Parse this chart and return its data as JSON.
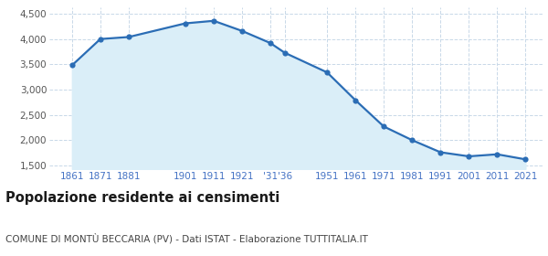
{
  "years": [
    1861,
    1871,
    1881,
    1901,
    1911,
    1921,
    1931,
    1936,
    1951,
    1961,
    1971,
    1981,
    1991,
    2001,
    2011,
    2021
  ],
  "population": [
    3480,
    4000,
    4040,
    4310,
    4360,
    4160,
    3920,
    3730,
    3340,
    2790,
    2270,
    2000,
    1760,
    1680,
    1720,
    1620
  ],
  "y_ticks": [
    1500,
    2000,
    2500,
    3000,
    3500,
    4000,
    4500
  ],
  "ylim": [
    1430,
    4620
  ],
  "xlim": [
    1853,
    2027
  ],
  "line_color": "#2b6db5",
  "fill_color": "#daeef8",
  "marker_color": "#2b6db5",
  "bg_color": "#ffffff",
  "plot_bg_color": "#ffffff",
  "grid_color": "#c8d8e8",
  "title": "Popolazione residente ai censimenti",
  "subtitle": "COMUNE DI MONTÙ BECCARIA (PV) - Dati ISTAT - Elaborazione TUTTITALIA.IT",
  "title_fontsize": 10.5,
  "subtitle_fontsize": 7.5,
  "tick_fontsize": 7.5,
  "tick_color": "#4472c4",
  "ytick_color": "#555555",
  "x_positions": [
    1861,
    1871,
    1881,
    1901,
    1911,
    1921,
    1931,
    1936,
    1951,
    1961,
    1971,
    1981,
    1991,
    2001,
    2011,
    2021
  ],
  "x_labels": [
    "1861",
    "1871",
    "1881",
    "1901",
    "1911",
    "1921",
    "'31",
    "'36",
    "1951",
    "1961",
    "1971",
    "1981",
    "1991",
    "2001",
    "2011",
    "2021"
  ]
}
